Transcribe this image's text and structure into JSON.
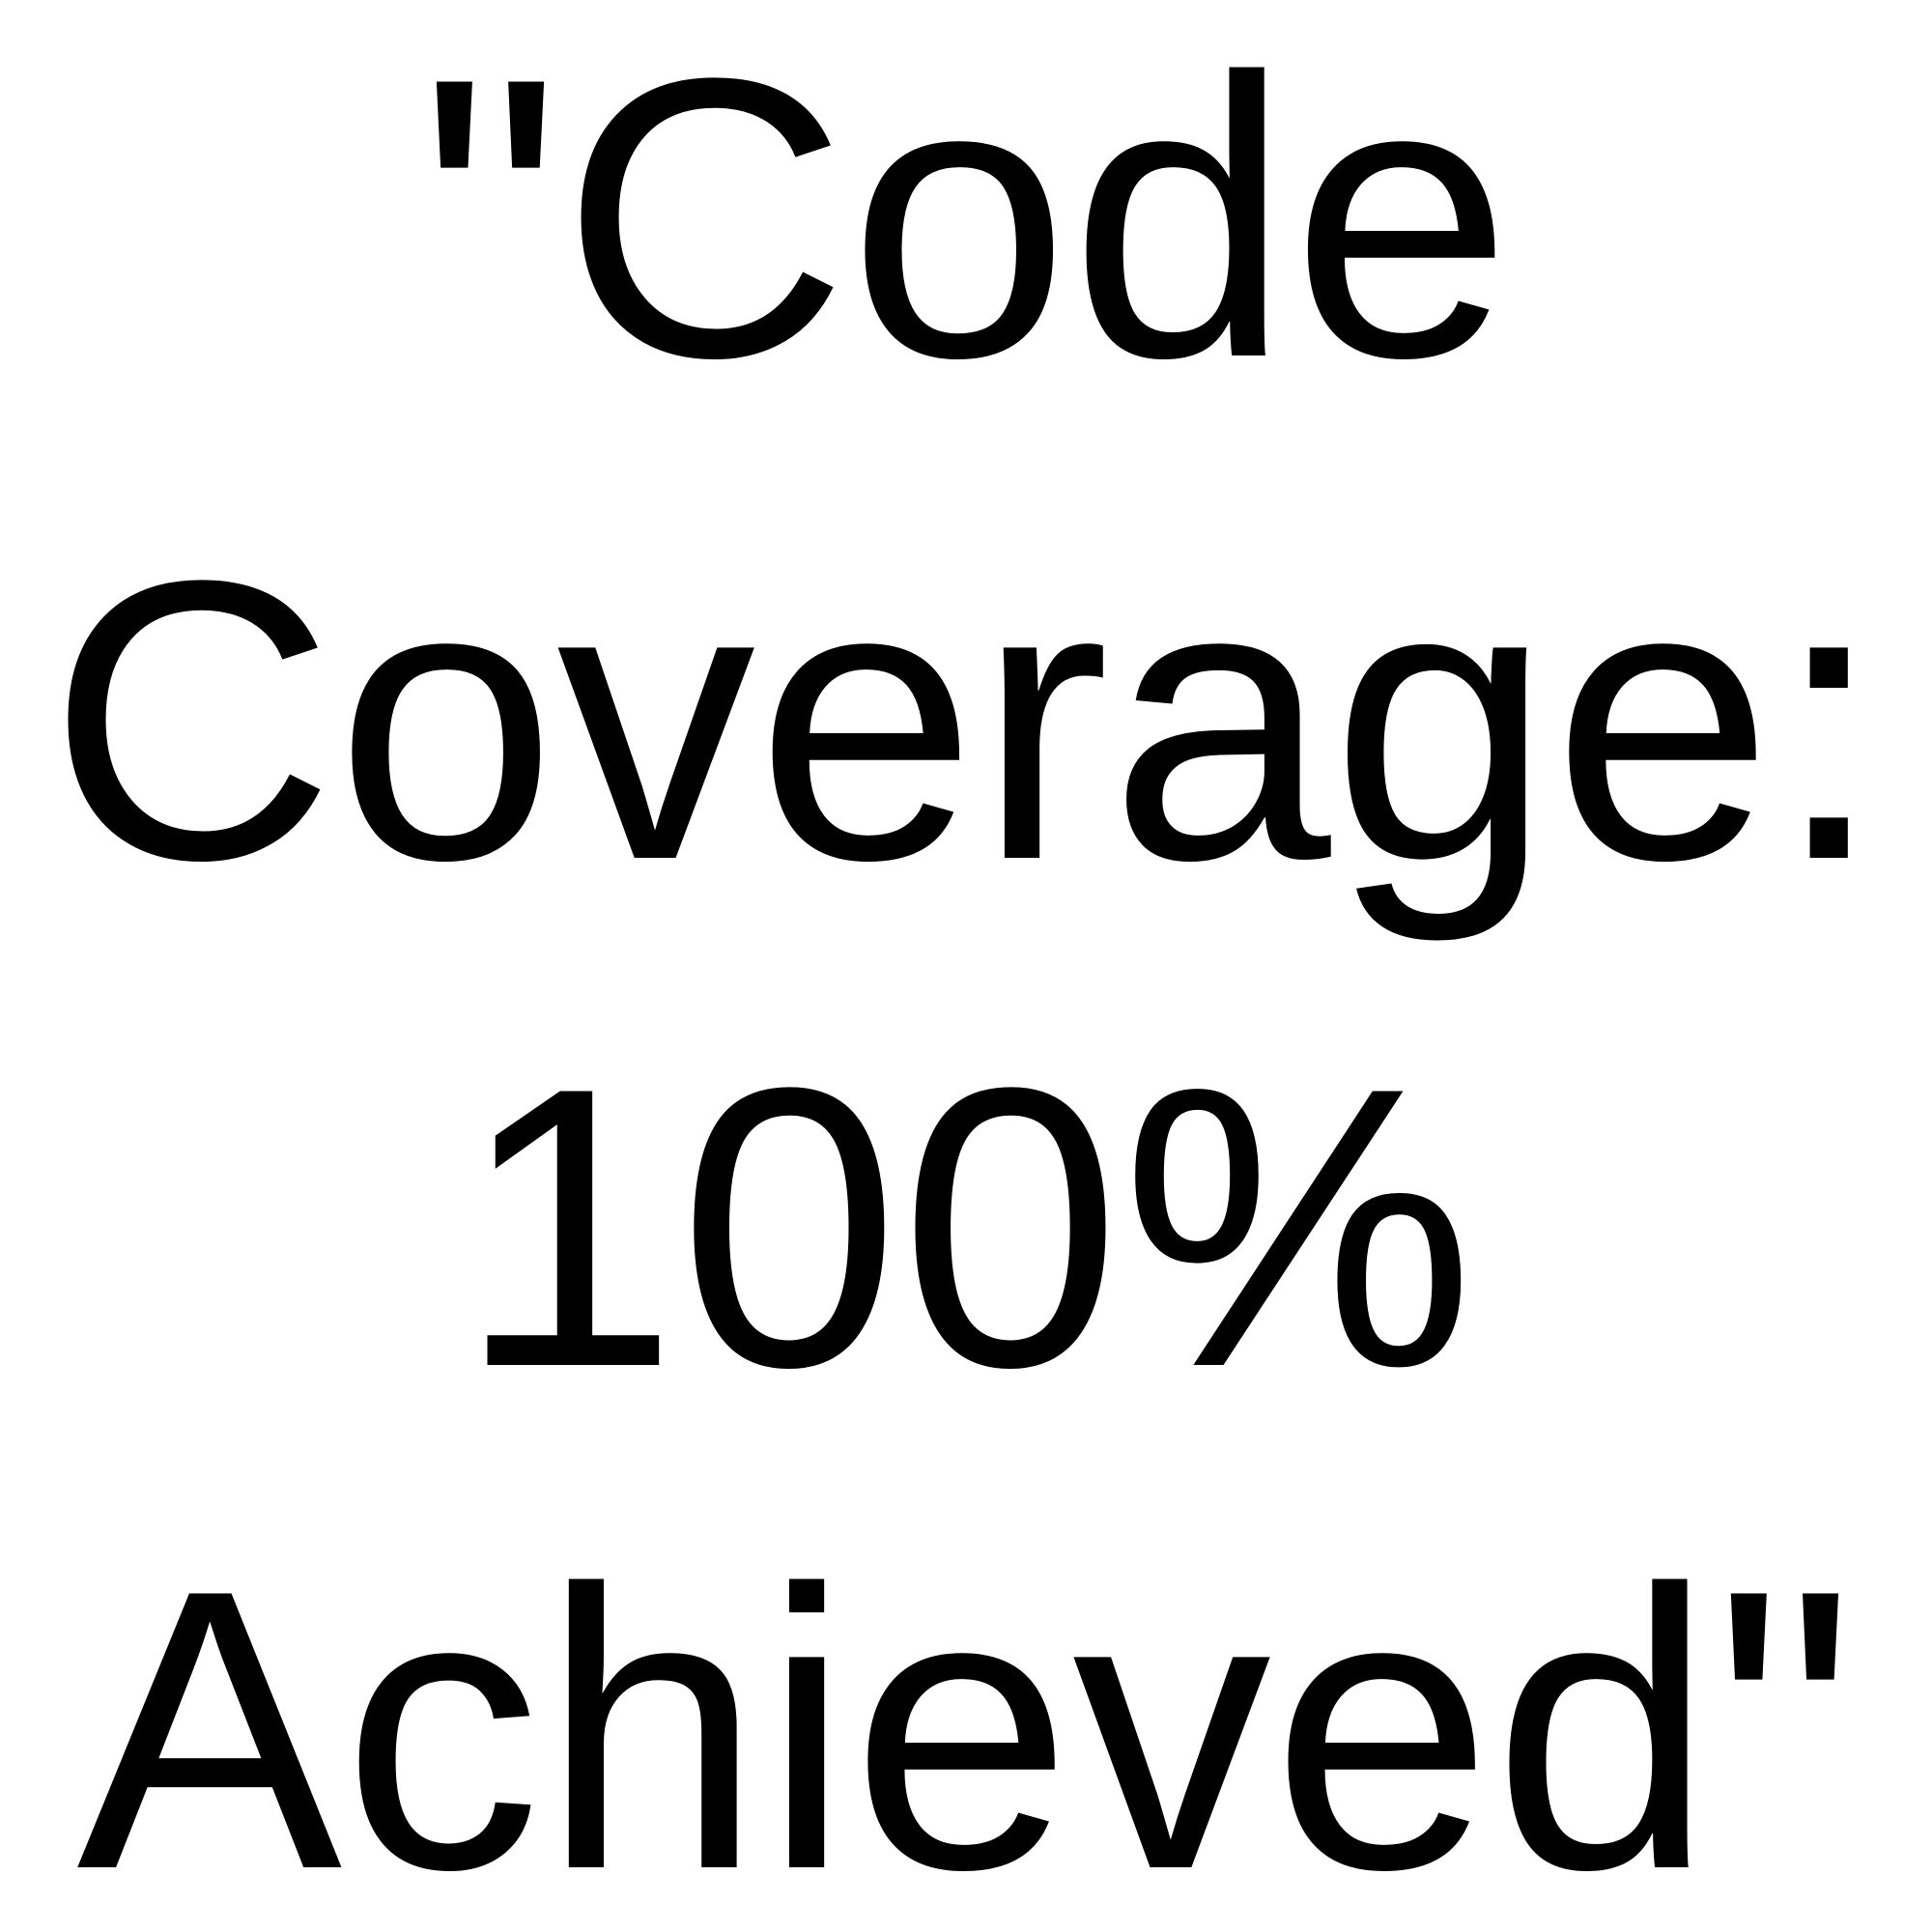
{
  "text": {
    "lines": [
      "\"Code",
      "Coverage:",
      "100%",
      "Achieved\""
    ]
  },
  "colors": {
    "text": "#000000",
    "background": "#ffffff"
  }
}
